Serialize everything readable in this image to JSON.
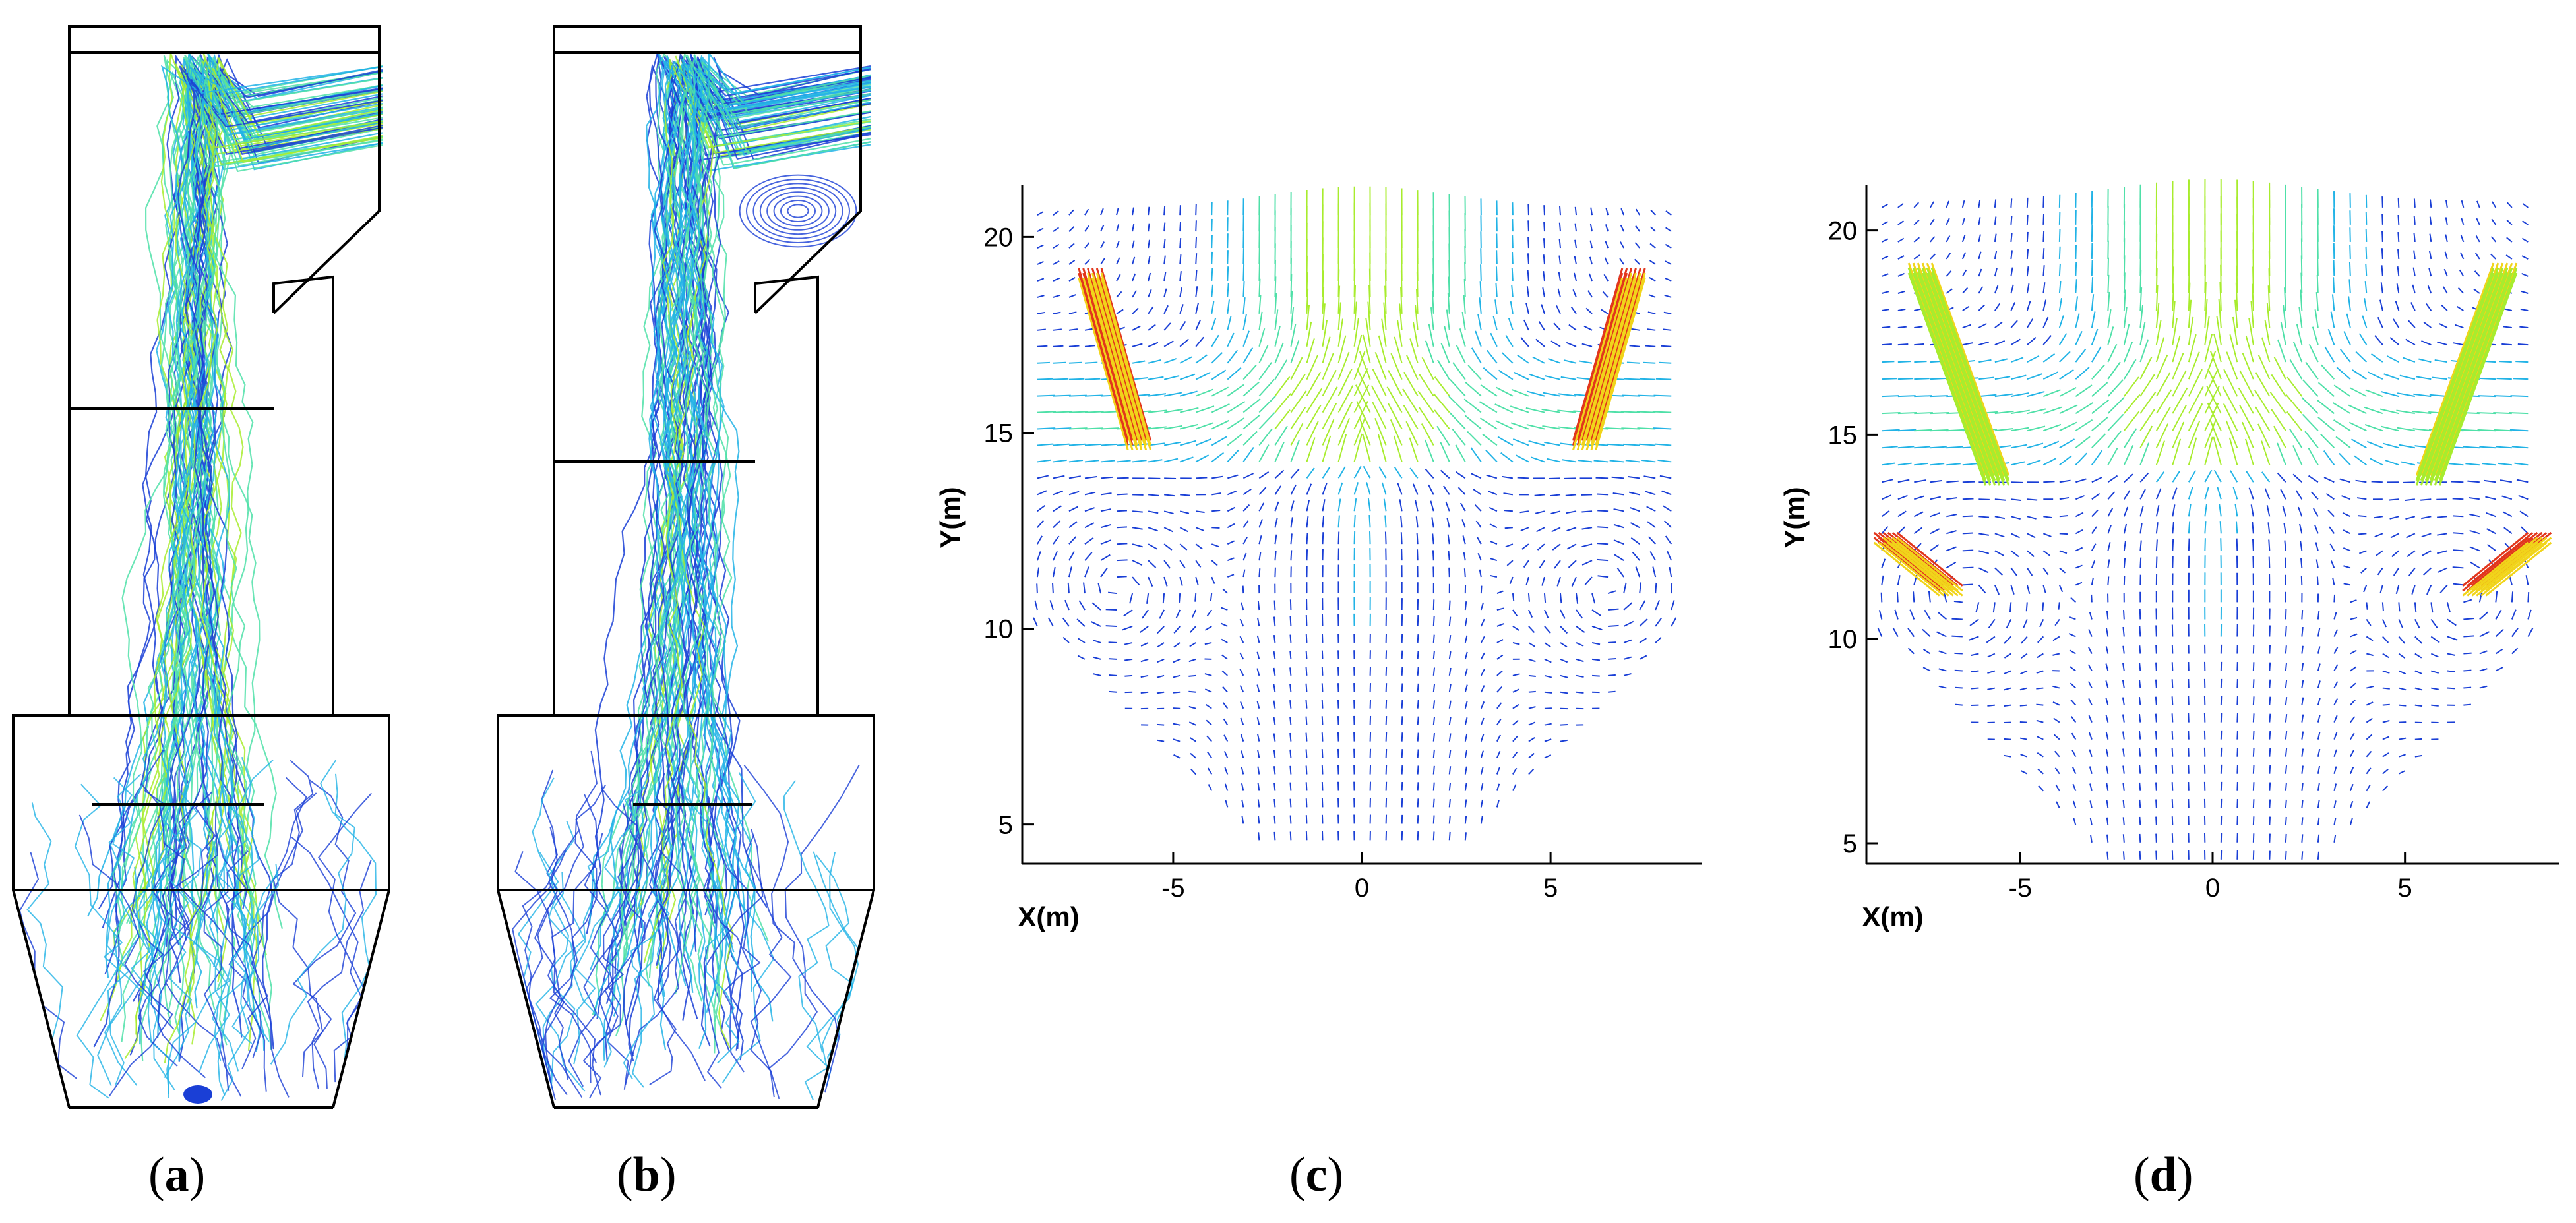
{
  "captions": {
    "a": {
      "open": "(",
      "letter": "a",
      "close": ")"
    },
    "b": {
      "open": "(",
      "letter": "b",
      "close": ")"
    },
    "c": {
      "open": "(",
      "letter": "c",
      "close": ")"
    },
    "d": {
      "open": "(",
      "letter": "d",
      "close": ")"
    }
  },
  "colors": {
    "low": "#1a3fd6",
    "mid_low": "#22b3e6",
    "mid": "#4fe0a8",
    "mid_high": "#a8ec2e",
    "high": "#f1d41a",
    "peak": "#e2361c",
    "outline": "#000000"
  },
  "chart_data": [
    {
      "panel": "a",
      "type": "streamline",
      "title": "",
      "description_visible": false
    },
    {
      "panel": "b",
      "type": "streamline",
      "title": ""
    },
    {
      "panel": "c",
      "type": "vector",
      "xlabel": "X(m)",
      "ylabel": "Y(m)",
      "xlim": [
        -9,
        9
      ],
      "ylim": [
        4,
        21
      ],
      "xticks": [
        -5,
        0,
        5
      ],
      "xtick_labels": [
        "-5",
        "0",
        "5"
      ],
      "yticks": [
        5,
        10,
        15,
        20
      ],
      "ytick_labels": [
        "5",
        "10",
        "15",
        "20"
      ],
      "jets": [
        {
          "from": [
            -7.2,
            19.2
          ],
          "to": [
            -5.9,
            14.8
          ],
          "strength": "peak"
        },
        {
          "from": [
            7.2,
            19.2
          ],
          "to": [
            5.9,
            14.8
          ],
          "strength": "peak"
        }
      ]
    },
    {
      "panel": "d",
      "type": "vector",
      "xlabel": "X(m)",
      "ylabel": "Y(m)",
      "xlim": [
        -9,
        9
      ],
      "ylim": [
        4.5,
        20.8
      ],
      "xticks": [
        -5,
        0,
        5
      ],
      "xtick_labels": [
        "-5",
        "0",
        "5"
      ],
      "yticks": [
        5,
        10,
        15,
        20
      ],
      "ytick_labels": [
        "5",
        "10",
        "15",
        "20"
      ],
      "jets": [
        {
          "from": [
            -7.6,
            19.2
          ],
          "to": [
            -5.6,
            14.0
          ],
          "strength": "high"
        },
        {
          "from": [
            7.6,
            19.2
          ],
          "to": [
            5.6,
            14.0
          ],
          "strength": "high"
        },
        {
          "from": [
            -8.5,
            12.6
          ],
          "to": [
            -6.8,
            11.3
          ],
          "strength": "peak"
        },
        {
          "from": [
            8.5,
            12.6
          ],
          "to": [
            6.8,
            11.3
          ],
          "strength": "peak"
        }
      ]
    }
  ]
}
